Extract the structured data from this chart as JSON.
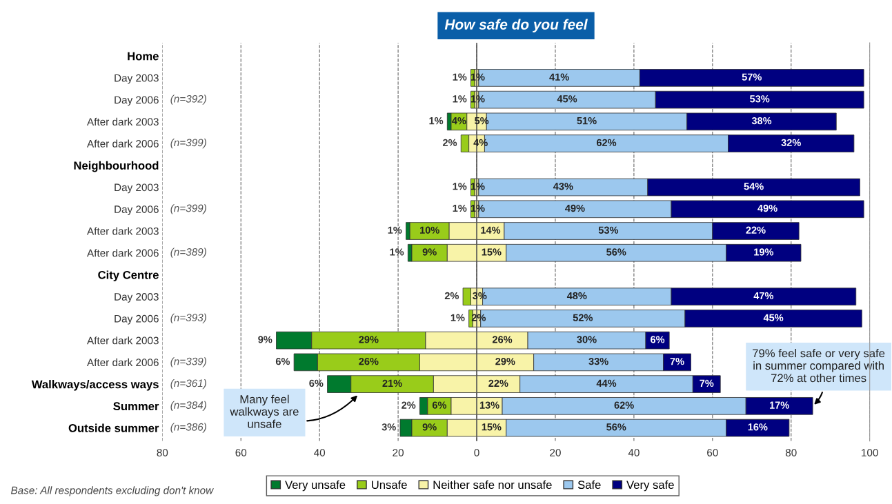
{
  "chart_data": {
    "type": "bar",
    "orientation": "horizontal",
    "title": "How safe do you feel",
    "categories": [
      "Home",
      "Day 2003",
      "Day 2006",
      "After dark 2003",
      "After dark 2006",
      "Neighbourhood",
      "Day 2003",
      "Day 2006",
      "After dark 2003",
      "After dark 2006",
      "City Centre",
      "Day 2003",
      "Day 2006",
      "After dark 2003",
      "After dark 2006",
      "Walkways/access ways",
      "Summer",
      "Outside summer"
    ],
    "series": [
      {
        "name": "Very unsafe",
        "color": "#007a2e",
        "base": [
          null,
          null,
          null,
          -7.5,
          null,
          null,
          null,
          null,
          -18,
          -17.5,
          null,
          null,
          null,
          -51,
          -46.5,
          -38,
          -14.5,
          -19.5
        ],
        "values": [
          null,
          null,
          null,
          1,
          null,
          null,
          null,
          null,
          1,
          1,
          null,
          null,
          null,
          9,
          6,
          6,
          2,
          3
        ],
        "value_labels": [
          null,
          null,
          null,
          "1%",
          null,
          null,
          null,
          null,
          "1%",
          "1%",
          null,
          null,
          null,
          "9%",
          "6%",
          "6%",
          "2%",
          "3%"
        ]
      },
      {
        "name": "Unsafe",
        "color": "#99cc1a",
        "base": [
          null,
          -1.5,
          -1.5,
          -6.5,
          -4,
          null,
          -1.5,
          -1.5,
          -17,
          -16.5,
          null,
          -3.5,
          -2,
          -42,
          -40.5,
          -32,
          -12.5,
          -16.5
        ],
        "values": [
          null,
          1,
          1,
          4,
          2,
          null,
          1,
          1,
          10,
          9,
          null,
          2,
          1,
          29,
          26,
          21,
          6,
          9
        ],
        "value_labels": [
          null,
          "1%",
          "1%",
          "4%",
          "2%",
          null,
          "1%",
          "1%",
          "10%",
          "9%",
          null,
          "2%",
          "1%",
          "29%",
          "26%",
          "21%",
          "6%",
          "9%"
        ]
      },
      {
        "name": "Neither safe nor unsafe",
        "color": "#f8f3a8",
        "base": [
          null,
          -0.5,
          -0.5,
          -2.5,
          -2,
          null,
          -0.5,
          -0.5,
          -7,
          -7.5,
          null,
          -1.5,
          -1,
          -13,
          -14.5,
          -11,
          -6.5,
          -7.5
        ],
        "values": [
          null,
          1,
          1,
          5,
          4,
          null,
          1,
          1,
          14,
          15,
          null,
          3,
          2,
          26,
          29,
          22,
          13,
          15
        ],
        "value_labels": [
          null,
          "1%",
          "1%",
          "5%",
          "4%",
          null,
          "1%",
          "1%",
          "14%",
          "15%",
          null,
          "3%",
          "2%",
          "26%",
          "29%",
          "22%",
          "13%",
          "15%"
        ]
      },
      {
        "name": "Safe",
        "color": "#9cc8ee",
        "base": [
          null,
          0.5,
          0.5,
          2.5,
          2,
          null,
          0.5,
          0.5,
          7,
          7.5,
          null,
          1.5,
          1,
          13,
          14.5,
          11,
          6.5,
          7.5
        ],
        "values": [
          null,
          41,
          45,
          51,
          62,
          null,
          43,
          49,
          53,
          56,
          null,
          48,
          52,
          30,
          33,
          44,
          62,
          56
        ],
        "value_labels": [
          null,
          "41%",
          "45%",
          "51%",
          "62%",
          null,
          "43%",
          "49%",
          "53%",
          "56%",
          null,
          "48%",
          "52%",
          "30%",
          "33%",
          "44%",
          "62%",
          "56%"
        ]
      },
      {
        "name": "Very safe",
        "color": "#000080",
        "base": [
          null,
          41.5,
          45.5,
          53.5,
          64,
          null,
          43.5,
          49.5,
          60,
          63.5,
          null,
          49.5,
          53,
          43,
          47.5,
          55,
          68.5,
          63.5
        ],
        "values": [
          null,
          57,
          53,
          38,
          32,
          null,
          54,
          49,
          22,
          19,
          null,
          47,
          45,
          6,
          7,
          7,
          17,
          16
        ],
        "value_labels": [
          null,
          "57%",
          "53%",
          "38%",
          "32%",
          null,
          "54%",
          "49%",
          "22%",
          "19%",
          null,
          "47%",
          "45%",
          "6%",
          "7%",
          "7%",
          "17%",
          "16%"
        ]
      }
    ],
    "xlim": [
      -80,
      100
    ],
    "xticks": [
      {
        "value": -80,
        "label": "80"
      },
      {
        "value": -60,
        "label": "60"
      },
      {
        "value": -40,
        "label": "40"
      },
      {
        "value": -20,
        "label": "20"
      },
      0,
      20,
      40,
      60,
      80,
      100
    ],
    "grid": "x",
    "line_style": "dashed",
    "legend": "bottom",
    "ref_lines": [
      {
        "axis": "x",
        "value": 0,
        "color": "#555555"
      }
    ],
    "annotations": [
      "Base: All respondents excluding don't know",
      "Many feel walkways are unsafe",
      {
        "text": "79% feel safe or very safe in summer compared with 72% at other times",
        "x": 85.5,
        "y": "Summer"
      },
      "(n=392)",
      "(n=399)",
      "(n=399)",
      "(n=389)",
      "(n=393)",
      "(n=339)",
      "(n=361)",
      "(n=384)",
      "(n=386)"
    ]
  }
}
